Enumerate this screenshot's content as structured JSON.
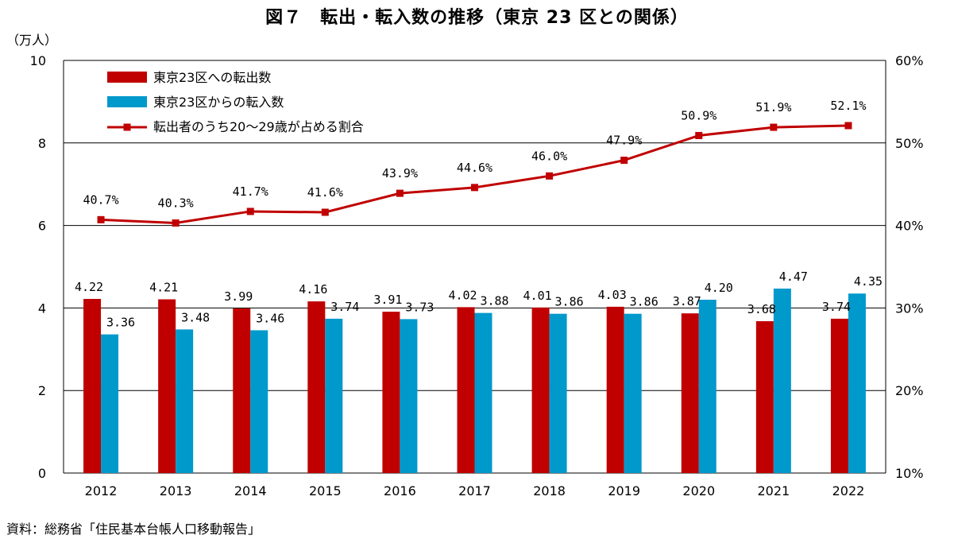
{
  "title": "図７　転出・転入数の推移（東京 23 区との関係）",
  "y_unit": "（万人）",
  "source": "資料：総務省「住民基本台帳人口移動報告」",
  "colors": {
    "out": "#C00000",
    "in": "#0099CC",
    "line": "#C00000",
    "grid": "#000000"
  },
  "chart_data": {
    "type": "bar+line",
    "categories": [
      "2012",
      "2013",
      "2014",
      "2015",
      "2016",
      "2017",
      "2018",
      "2019",
      "2020",
      "2021",
      "2022"
    ],
    "series": [
      {
        "name": "東京23区への転出数",
        "type": "bar",
        "axis": "left",
        "values": [
          4.22,
          4.21,
          3.99,
          4.16,
          3.91,
          4.02,
          4.01,
          4.03,
          3.87,
          3.68,
          3.74
        ],
        "labels": [
          "4.22",
          "4.21",
          "3.99",
          "4.16",
          "3.91",
          "4.02",
          "4.01",
          "4.03",
          "3.87",
          "3.68",
          "3.74"
        ]
      },
      {
        "name": "東京23区からの転入数",
        "type": "bar",
        "axis": "left",
        "values": [
          3.36,
          3.48,
          3.46,
          3.74,
          3.73,
          3.88,
          3.86,
          3.86,
          4.2,
          4.47,
          4.35
        ],
        "labels": [
          "3.36",
          "3.48",
          "3.46",
          "3.74",
          "3.73",
          "3.88",
          "3.86",
          "3.86",
          "4.20",
          "4.47",
          "4.35"
        ]
      },
      {
        "name": "転出者のうち20～29歳が占める割合",
        "type": "line",
        "axis": "right",
        "values": [
          40.7,
          40.3,
          41.7,
          41.6,
          43.9,
          44.6,
          46.0,
          47.9,
          50.9,
          51.9,
          52.1
        ],
        "labels": [
          "40.7%",
          "40.3%",
          "41.7%",
          "41.6%",
          "43.9%",
          "44.6%",
          "46.0%",
          "47.9%",
          "50.9%",
          "51.9%",
          "52.1%"
        ]
      }
    ],
    "y_left": {
      "min": 0,
      "max": 10,
      "ticks": [
        "0",
        "2",
        "4",
        "6",
        "8",
        "10"
      ]
    },
    "y_right": {
      "min": 10,
      "max": 60,
      "ticks": [
        "10%",
        "20%",
        "30%",
        "40%",
        "50%",
        "60%"
      ]
    },
    "grid": true,
    "legend_position": "top-left"
  }
}
